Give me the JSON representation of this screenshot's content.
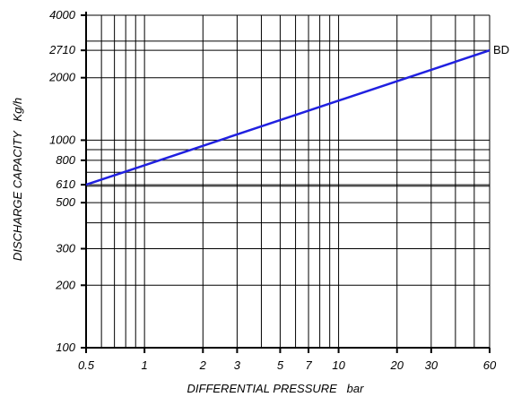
{
  "chart_data": {
    "type": "line",
    "x_scale": "log",
    "y_scale": "log",
    "xlim": [
      0.5,
      60
    ],
    "ylim": [
      100,
      4000
    ],
    "xlabel": "DIFFERENTIAL PRESSURE   bar",
    "ylabel": "DISCHARGE CAPACITY   Kg/h",
    "x_ticks": [
      0.5,
      1,
      2,
      3,
      5,
      7,
      10,
      20,
      30,
      60
    ],
    "x_tick_labels": [
      "0.5",
      "1",
      "2",
      "3",
      "5",
      "7",
      "10",
      "20",
      "30",
      "60"
    ],
    "y_ticks": [
      100,
      200,
      300,
      500,
      610,
      800,
      1000,
      2000,
      2710,
      4000
    ],
    "y_tick_labels": [
      "100",
      "200",
      "300",
      "500",
      "610",
      "800",
      "1000",
      "2000",
      "2710",
      "4000"
    ],
    "x_gridlines": [
      0.5,
      0.6,
      0.7,
      0.8,
      0.9,
      1,
      2,
      3,
      4,
      5,
      6,
      7,
      8,
      9,
      10,
      20,
      30,
      40,
      50,
      60
    ],
    "y_gridlines": [
      100,
      200,
      300,
      400,
      500,
      600,
      700,
      800,
      900,
      1000,
      2000,
      3000,
      4000
    ],
    "grid": true,
    "series": [
      {
        "name": "BD",
        "color": "#2020e0",
        "x": [
          0.5,
          60
        ],
        "y": [
          610,
          2710
        ]
      }
    ]
  }
}
